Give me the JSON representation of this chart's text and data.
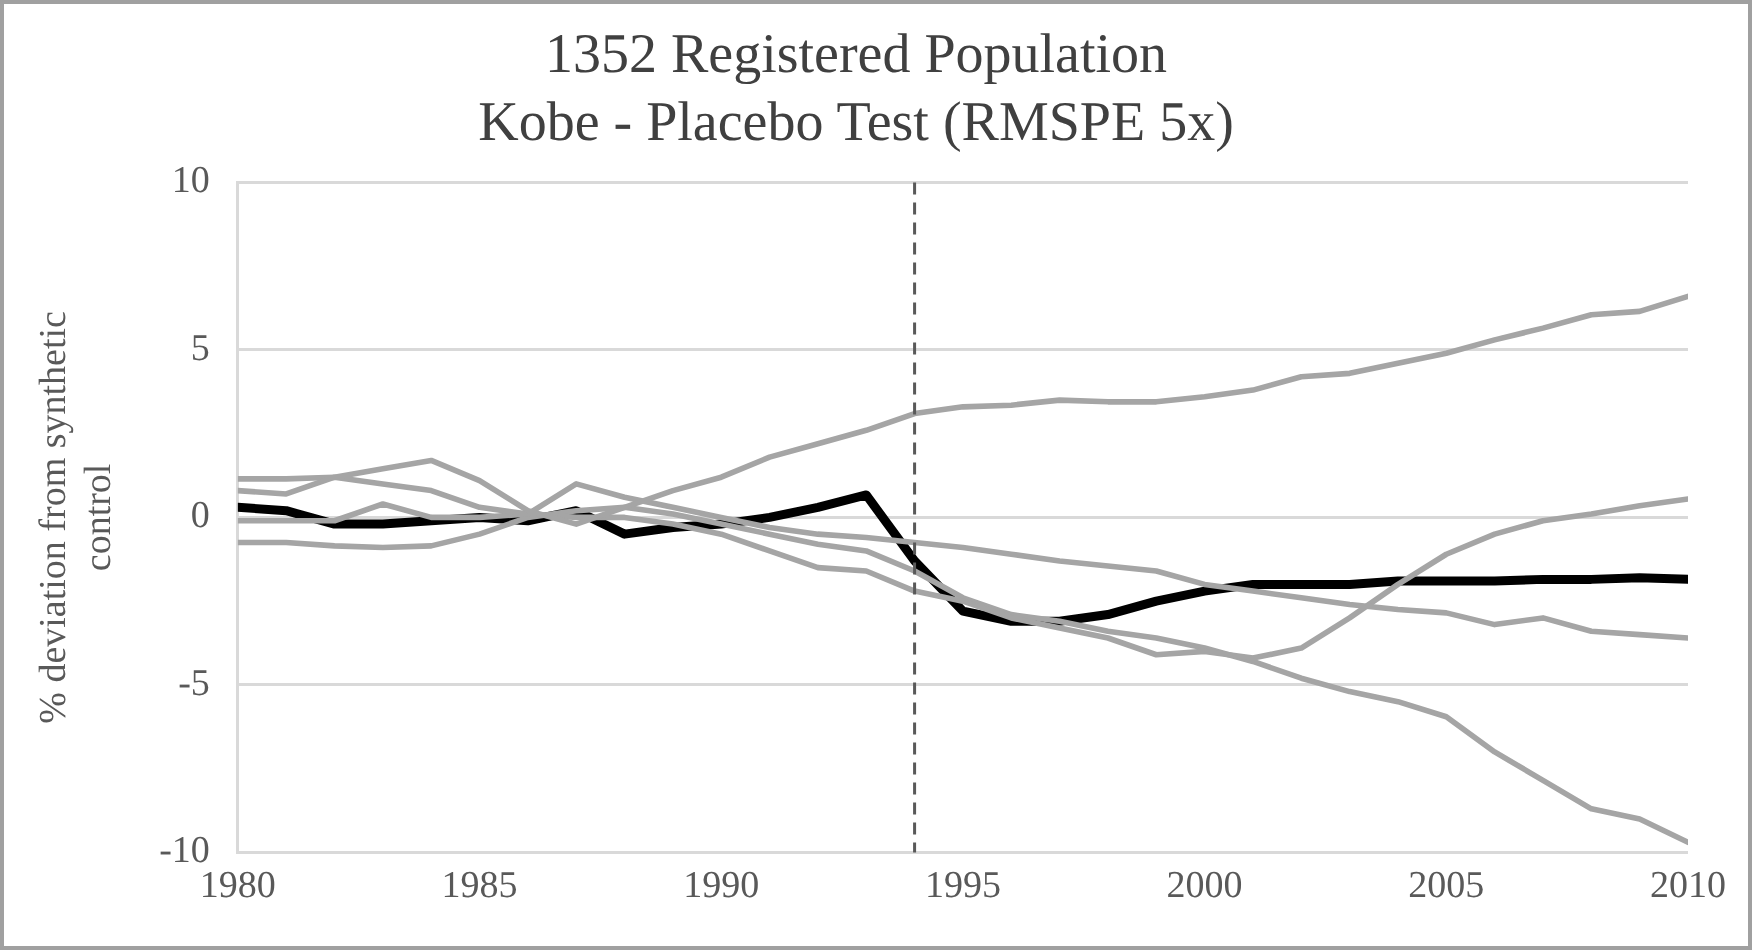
{
  "chart_data": {
    "type": "line",
    "title": "1352 Registered Population\nKobe - Placebo Test (RMSPE 5x)",
    "ylabel": "% deviation from synthetic\ncontrol",
    "x": [
      1980,
      1981,
      1982,
      1983,
      1984,
      1985,
      1986,
      1987,
      1988,
      1989,
      1990,
      1991,
      1992,
      1993,
      1994,
      1995,
      1996,
      1997,
      1998,
      1999,
      2000,
      2001,
      2002,
      2003,
      2004,
      2005,
      2006,
      2007,
      2008,
      2009,
      2010
    ],
    "xlim": [
      1980,
      2010
    ],
    "xticks": [
      1980,
      1985,
      1990,
      1995,
      2000,
      2005,
      2010
    ],
    "ylim": [
      -10,
      10
    ],
    "yticks": [
      -10,
      -5,
      0,
      5,
      10
    ],
    "grid": "y",
    "legend": false,
    "marker": "none",
    "line_style": "solid",
    "ref_lines": [
      {
        "axis": "x",
        "value": 1994,
        "color": "#595959",
        "line_style": "dashed"
      }
    ],
    "series": [
      {
        "color": "#a5a5a5",
        "values": [
          0.8,
          0.7,
          1.2,
          1.45,
          1.7,
          1.1,
          0.2,
          -0.2,
          0.3,
          0.8,
          1.2,
          1.8,
          2.2,
          2.6,
          3.1,
          3.3,
          3.35,
          3.5,
          3.45,
          3.45,
          3.6,
          3.8,
          4.2,
          4.3,
          4.6,
          4.9,
          5.3,
          5.65,
          6.05,
          6.15,
          6.6
        ]
      },
      {
        "color": "#a5a5a5",
        "values": [
          1.15,
          1.15,
          1.2,
          1.0,
          0.8,
          0.3,
          0.1,
          1.0,
          0.6,
          0.3,
          0.0,
          -0.3,
          -0.5,
          -0.6,
          -0.75,
          -0.9,
          -1.1,
          -1.3,
          -1.45,
          -1.6,
          -2.0,
          -2.2,
          -2.4,
          -2.6,
          -2.75,
          -2.85,
          -3.2,
          -3.0,
          -3.4,
          -3.5,
          -3.6
        ]
      },
      {
        "color": "#a5a5a5",
        "values": [
          -0.1,
          -0.1,
          -0.1,
          0.4,
          0.0,
          0.0,
          0.1,
          0.0,
          0.0,
          -0.2,
          -0.5,
          -1.0,
          -1.5,
          -1.6,
          -2.2,
          -2.5,
          -3.0,
          -3.3,
          -3.6,
          -4.1,
          -4.0,
          -4.2,
          -3.9,
          -3.0,
          -2.0,
          -1.1,
          -0.5,
          -0.1,
          0.1,
          0.35,
          0.55
        ]
      },
      {
        "color": "#a5a5a5",
        "values": [
          -0.75,
          -0.75,
          -0.85,
          -0.9,
          -0.85,
          -0.5,
          0.0,
          0.2,
          0.3,
          0.1,
          -0.2,
          -0.5,
          -0.8,
          -1.0,
          -1.6,
          -2.4,
          -2.9,
          -3.1,
          -3.4,
          -3.6,
          -3.9,
          -4.3,
          -4.8,
          -5.2,
          -5.5,
          -5.95,
          -7.0,
          -7.85,
          -8.7,
          -9.0,
          -9.7
        ]
      },
      {
        "color": "#000000",
        "values": [
          0.3,
          0.2,
          -0.2,
          -0.2,
          -0.1,
          0.0,
          -0.1,
          0.2,
          -0.5,
          -0.3,
          -0.2,
          0.0,
          0.3,
          0.67,
          -1.3,
          -2.8,
          -3.1,
          -3.1,
          -2.9,
          -2.5,
          -2.2,
          -2.0,
          -2.0,
          -2.0,
          -1.9,
          -1.9,
          -1.9,
          -1.85,
          -1.85,
          -1.8,
          -1.85
        ]
      }
    ]
  }
}
